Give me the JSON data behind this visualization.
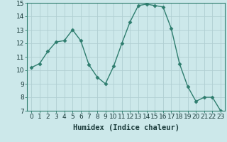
{
  "x": [
    0,
    1,
    2,
    3,
    4,
    5,
    6,
    7,
    8,
    9,
    10,
    11,
    12,
    13,
    14,
    15,
    16,
    17,
    18,
    19,
    20,
    21,
    22,
    23
  ],
  "y": [
    10.2,
    10.5,
    11.4,
    12.1,
    12.2,
    13.0,
    12.2,
    10.4,
    9.5,
    9.0,
    10.3,
    12.0,
    13.6,
    14.8,
    14.9,
    14.8,
    14.7,
    13.1,
    10.5,
    8.8,
    7.7,
    8.0,
    8.0,
    7.0
  ],
  "line_color": "#2e7d6e",
  "marker": "D",
  "marker_size": 2.5,
  "bg_color": "#cce8ea",
  "grid_color": "#b0ced2",
  "xlabel": "Humidex (Indice chaleur)",
  "ylim": [
    7,
    15
  ],
  "xlim_min": -0.5,
  "xlim_max": 23.5,
  "yticks": [
    7,
    8,
    9,
    10,
    11,
    12,
    13,
    14,
    15
  ],
  "xticks": [
    0,
    1,
    2,
    3,
    4,
    5,
    6,
    7,
    8,
    9,
    10,
    11,
    12,
    13,
    14,
    15,
    16,
    17,
    18,
    19,
    20,
    21,
    22,
    23
  ],
  "xtick_labels": [
    "0",
    "1",
    "2",
    "3",
    "4",
    "5",
    "6",
    "7",
    "8",
    "9",
    "10",
    "11",
    "12",
    "13",
    "14",
    "15",
    "16",
    "17",
    "18",
    "19",
    "20",
    "21",
    "22",
    "23"
  ],
  "tick_fontsize": 6.5,
  "xlabel_fontsize": 7.5,
  "line_width": 1.0,
  "spine_color": "#2e7d6e"
}
